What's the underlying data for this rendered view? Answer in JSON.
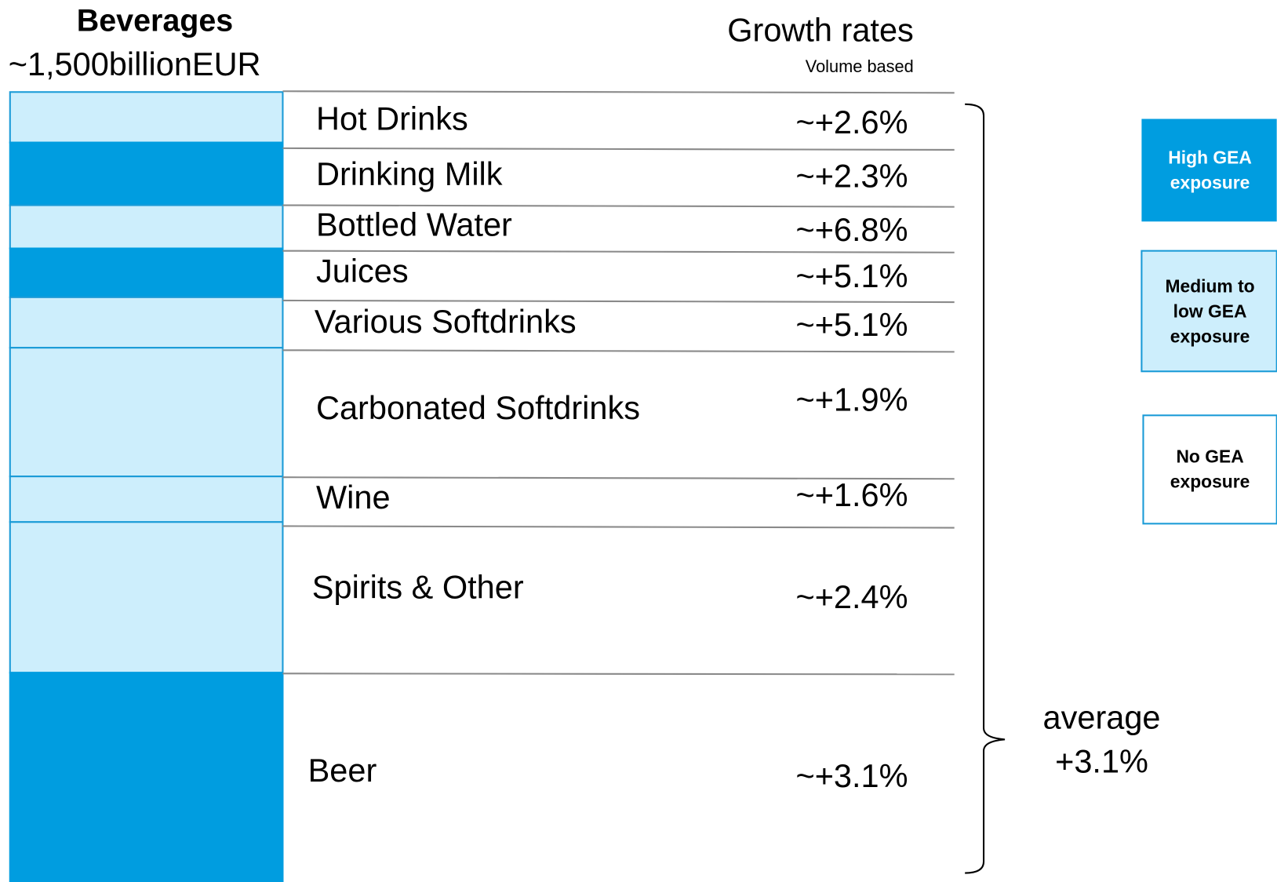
{
  "header": {
    "title": "Beverages",
    "subtitle": "~1,500billionEUR",
    "growth_title": "Growth rates",
    "growth_note": "Volume based"
  },
  "rows": [
    {
      "label": "Hot Drinks",
      "growth": "~+2.6%"
    },
    {
      "label": "Drinking Milk",
      "growth": "~+2.3%"
    },
    {
      "label": "Bottled Water",
      "growth": "~+6.8%"
    },
    {
      "label": "Juices",
      "growth": "~+5.1%"
    },
    {
      "label": "Various Softdrinks",
      "growth": "~+5.1%"
    },
    {
      "label": "Carbonated Softdrinks",
      "growth": "~+1.9%"
    },
    {
      "label": "Wine",
      "growth": "~+1.6%"
    },
    {
      "label": "Spirits & Other",
      "growth": "~+2.4%"
    },
    {
      "label": "Beer",
      "growth": "~+3.1%"
    }
  ],
  "summary": {
    "label": "average",
    "value": "+3.1%"
  },
  "legend": [
    {
      "lines": [
        "High GEA",
        "exposure"
      ]
    },
    {
      "lines": [
        "Medium to",
        "low GEA",
        "exposure"
      ]
    },
    {
      "lines": [
        "No GEA",
        "exposure"
      ]
    }
  ]
}
